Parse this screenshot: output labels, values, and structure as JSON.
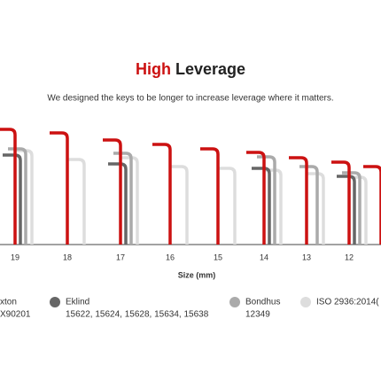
{
  "chart_data": {
    "type": "hexkey",
    "title_highlight": "High",
    "title": "Leverage",
    "subtitle": "We designed the keys to be longer to increase leverage where it matters.",
    "x_label": "Size (mm)",
    "categories": [
      "19",
      "18",
      "17",
      "16",
      "15",
      "14",
      "13",
      "12",
      null
    ],
    "ylim": [
      0,
      130
    ],
    "series": [
      {
        "name": "xton",
        "detail": "X90201",
        "color": "#cc1111",
        "values": [
          130,
          126,
          118,
          113,
          108,
          104,
          98,
          93,
          88
        ]
      },
      {
        "name": "Eklind",
        "detail": "15622, 15624, 15628, 15634, 15638",
        "color": "#666666",
        "values": [
          101,
          null,
          91,
          null,
          null,
          86,
          null,
          77,
          null
        ]
      },
      {
        "name": "Bondhus",
        "detail": "12349",
        "color": "#aaaaaa",
        "values": [
          108,
          null,
          103,
          null,
          null,
          99,
          88,
          81,
          null
        ]
      },
      {
        "name": "ISO 2936:2014(",
        "color": "#dddddd",
        "values": [
          106,
          96,
          98,
          88,
          86,
          84,
          80,
          76,
          null
        ]
      }
    ]
  }
}
